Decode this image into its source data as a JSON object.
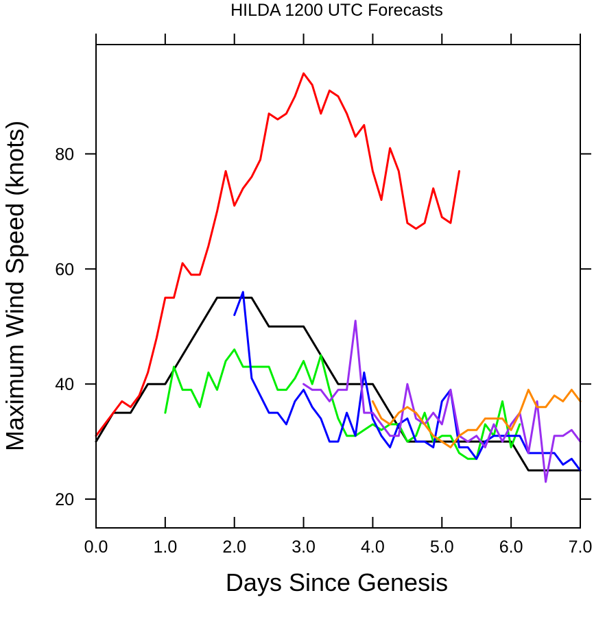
{
  "chart_data": {
    "type": "line",
    "title": "HILDA 1200 UTC Forecasts",
    "xlabel": "Days Since Genesis",
    "ylabel": "Maximum Wind Speed (knots)",
    "xlim": [
      0,
      7
    ],
    "ylim": [
      15,
      99
    ],
    "x_ticks": [
      0,
      1,
      2,
      3,
      4,
      5,
      6,
      7
    ],
    "x_tick_labels": [
      "0.0",
      "1.0",
      "2.0",
      "3.0",
      "4.0",
      "5.0",
      "6.0",
      "7.0"
    ],
    "y_ticks": [
      20,
      40,
      60,
      80
    ],
    "y_tick_labels": [
      "20",
      "40",
      "60",
      "80"
    ],
    "grid": false,
    "legend": "none",
    "series": [
      {
        "color": "#000000",
        "width": 3,
        "x": [
          0,
          0.25,
          0.5,
          0.75,
          1.0,
          1.25,
          1.5,
          1.75,
          2.0,
          2.25,
          2.5,
          2.75,
          3.0,
          3.25,
          3.5,
          3.75,
          4.0,
          4.25,
          4.5,
          4.75,
          5.0,
          5.25,
          5.5,
          5.75,
          6.0,
          6.25,
          6.5,
          6.75,
          7.0
        ],
        "y": [
          30,
          35,
          35,
          40,
          40,
          45,
          50,
          55,
          55,
          55,
          50,
          50,
          50,
          45,
          40,
          40,
          40,
          35,
          30,
          30,
          30,
          30,
          30,
          30,
          30,
          25,
          25,
          25,
          25
        ]
      },
      {
        "color": "#ff0000",
        "width": 3,
        "x": [
          0,
          0.125,
          0.25,
          0.375,
          0.5,
          0.625,
          0.75,
          0.875,
          1.0,
          1.125,
          1.25,
          1.375,
          1.5,
          1.625,
          1.75,
          1.875,
          2.0,
          2.125,
          2.25,
          2.375,
          2.5,
          2.625,
          2.75,
          2.875,
          3.0,
          3.125,
          3.25,
          3.375,
          3.5,
          3.625,
          3.75,
          3.875,
          4.0,
          4.125,
          4.25,
          4.375,
          4.5,
          4.625,
          4.75,
          4.875,
          5.0,
          5.125,
          5.25
        ],
        "y": [
          31,
          33,
          35,
          37,
          36,
          38,
          42,
          48,
          55,
          55,
          61,
          59,
          59,
          64,
          70,
          77,
          71,
          74,
          76,
          79,
          87,
          86,
          87,
          90,
          94,
          92,
          87,
          91,
          90,
          87,
          83,
          85,
          77,
          72,
          81,
          77,
          68,
          67,
          68,
          74,
          69,
          68,
          77
        ]
      },
      {
        "color": "#00ee00",
        "width": 3,
        "x": [
          1.0,
          1.125,
          1.25,
          1.375,
          1.5,
          1.625,
          1.75,
          1.875,
          2.0,
          2.125,
          2.25,
          2.375,
          2.5,
          2.625,
          2.75,
          2.875,
          3.0,
          3.125,
          3.25,
          3.375,
          3.5,
          3.625,
          3.75,
          3.875,
          4.0,
          4.125,
          4.25,
          4.375,
          4.5,
          4.625,
          4.75,
          4.875,
          5.0,
          5.125,
          5.25,
          5.375,
          5.5,
          5.625,
          5.75,
          5.875,
          6.0,
          6.125
        ],
        "y": [
          35,
          43,
          39,
          39,
          36,
          42,
          39,
          44,
          46,
          43,
          43,
          43,
          43,
          39,
          39,
          41,
          44,
          40,
          45,
          39,
          34,
          31,
          31,
          32,
          33,
          32,
          33,
          33,
          30,
          31,
          35,
          30,
          31,
          31,
          28,
          27,
          27,
          33,
          31,
          37,
          29,
          33
        ]
      },
      {
        "color": "#0000ff",
        "width": 3,
        "x": [
          2.0,
          2.125,
          2.25,
          2.375,
          2.5,
          2.625,
          2.75,
          2.875,
          3.0,
          3.125,
          3.25,
          3.375,
          3.5,
          3.625,
          3.75,
          3.875,
          4.0,
          4.125,
          4.25,
          4.375,
          4.5,
          4.625,
          4.75,
          4.875,
          5.0,
          5.125,
          5.25,
          5.375,
          5.5,
          5.625,
          5.75,
          5.875,
          6.0,
          6.125,
          6.25,
          6.375,
          6.5,
          6.625,
          6.75,
          6.875,
          7.0
        ],
        "y": [
          52,
          56,
          41,
          38,
          35,
          35,
          33,
          37,
          39,
          36,
          34,
          30,
          30,
          35,
          31,
          42,
          34,
          31,
          29,
          33,
          34,
          30,
          30,
          29,
          37,
          39,
          29,
          29,
          27,
          30,
          31,
          31,
          31,
          31,
          28,
          28,
          28,
          28,
          26,
          27,
          25
        ]
      },
      {
        "color": "#9a2ef0",
        "width": 3,
        "x": [
          3.0,
          3.125,
          3.25,
          3.375,
          3.5,
          3.625,
          3.75,
          3.875,
          4.0,
          4.125,
          4.25,
          4.375,
          4.5,
          4.625,
          4.75,
          4.875,
          5.0,
          5.125,
          5.25,
          5.375,
          5.5,
          5.625,
          5.75,
          5.875,
          6.0,
          6.125,
          6.25,
          6.375,
          6.5,
          6.625,
          6.75,
          6.875,
          7.0
        ],
        "y": [
          40,
          39,
          39,
          37,
          39,
          39,
          51,
          35,
          35,
          33,
          31,
          31,
          40,
          34,
          33,
          35,
          33,
          39,
          31,
          30,
          31,
          29,
          33,
          30,
          33,
          35,
          28,
          37,
          23,
          31,
          31,
          32,
          30
        ]
      },
      {
        "color": "#ff8800",
        "width": 3,
        "x": [
          4.0,
          4.125,
          4.25,
          4.375,
          4.5,
          4.625,
          4.75,
          4.875,
          5.0,
          5.125,
          5.25,
          5.375,
          5.5,
          5.625,
          5.75,
          5.875,
          6.0,
          6.125,
          6.25,
          6.375,
          6.5,
          6.625,
          6.75,
          6.875,
          7.0
        ],
        "y": [
          37,
          34,
          33,
          35,
          36,
          35,
          33,
          31,
          30,
          29,
          31,
          32,
          32,
          34,
          34,
          34,
          32,
          35,
          39,
          36,
          36,
          38,
          37,
          39,
          37
        ]
      }
    ]
  }
}
